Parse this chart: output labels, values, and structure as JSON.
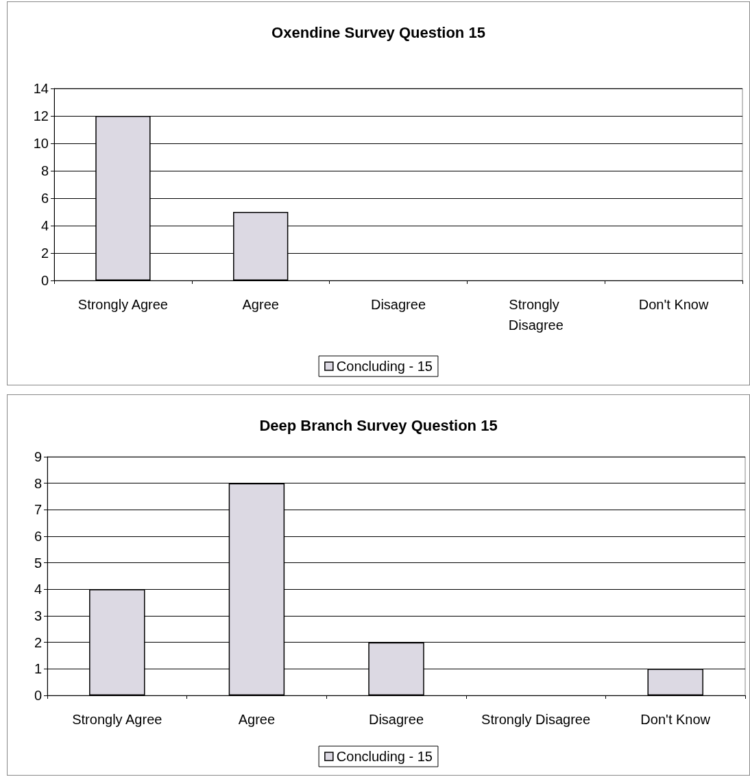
{
  "chart_data": [
    {
      "type": "bar",
      "title": "Oxendine Survey Question 15",
      "categories": [
        "Strongly Agree",
        "Agree",
        "Disagree",
        "Strongly Disagree",
        "Don't Know"
      ],
      "series": [
        {
          "name": "Concluding - 15",
          "color": "#dcd9e3",
          "values": [
            12,
            5,
            0,
            0,
            0
          ]
        }
      ],
      "ylim": [
        0,
        14
      ],
      "yticks": [
        0,
        2,
        4,
        6,
        8,
        10,
        12,
        14
      ],
      "grid": "y",
      "legend": "bottom"
    },
    {
      "type": "bar",
      "title": "Deep Branch Survey Question 15",
      "categories": [
        "Strongly Agree",
        "Agree",
        "Disagree",
        "Strongly Disagree",
        "Don't Know"
      ],
      "series": [
        {
          "name": "Concluding - 15",
          "color": "#dcd9e3",
          "values": [
            4,
            8,
            2,
            0,
            1
          ]
        }
      ],
      "ylim": [
        0,
        9
      ],
      "yticks": [
        0,
        1,
        2,
        3,
        4,
        5,
        6,
        7,
        8,
        9
      ],
      "grid": "y",
      "legend": "bottom"
    }
  ]
}
